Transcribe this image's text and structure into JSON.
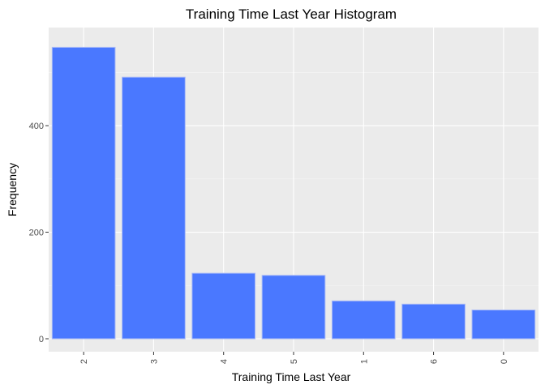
{
  "chart_data": {
    "type": "bar",
    "title": "Training Time Last Year Histogram",
    "xlabel": "Training Time Last Year",
    "ylabel": "Frequency",
    "categories": [
      "2",
      "3",
      "4",
      "5",
      "1",
      "6",
      "0"
    ],
    "values": [
      547,
      491,
      123,
      119,
      71,
      65,
      54
    ],
    "ylim": [
      0,
      575
    ],
    "yticks": [
      0,
      200,
      400
    ],
    "grid": true,
    "legend": "none",
    "colors": {
      "bar_fill": "#4a78ff",
      "bar_stroke": "#a8b9f7",
      "panel_background": "#ebebeb",
      "grid_major": "#ffffff",
      "grid_minor": "#f5f5f5"
    }
  }
}
